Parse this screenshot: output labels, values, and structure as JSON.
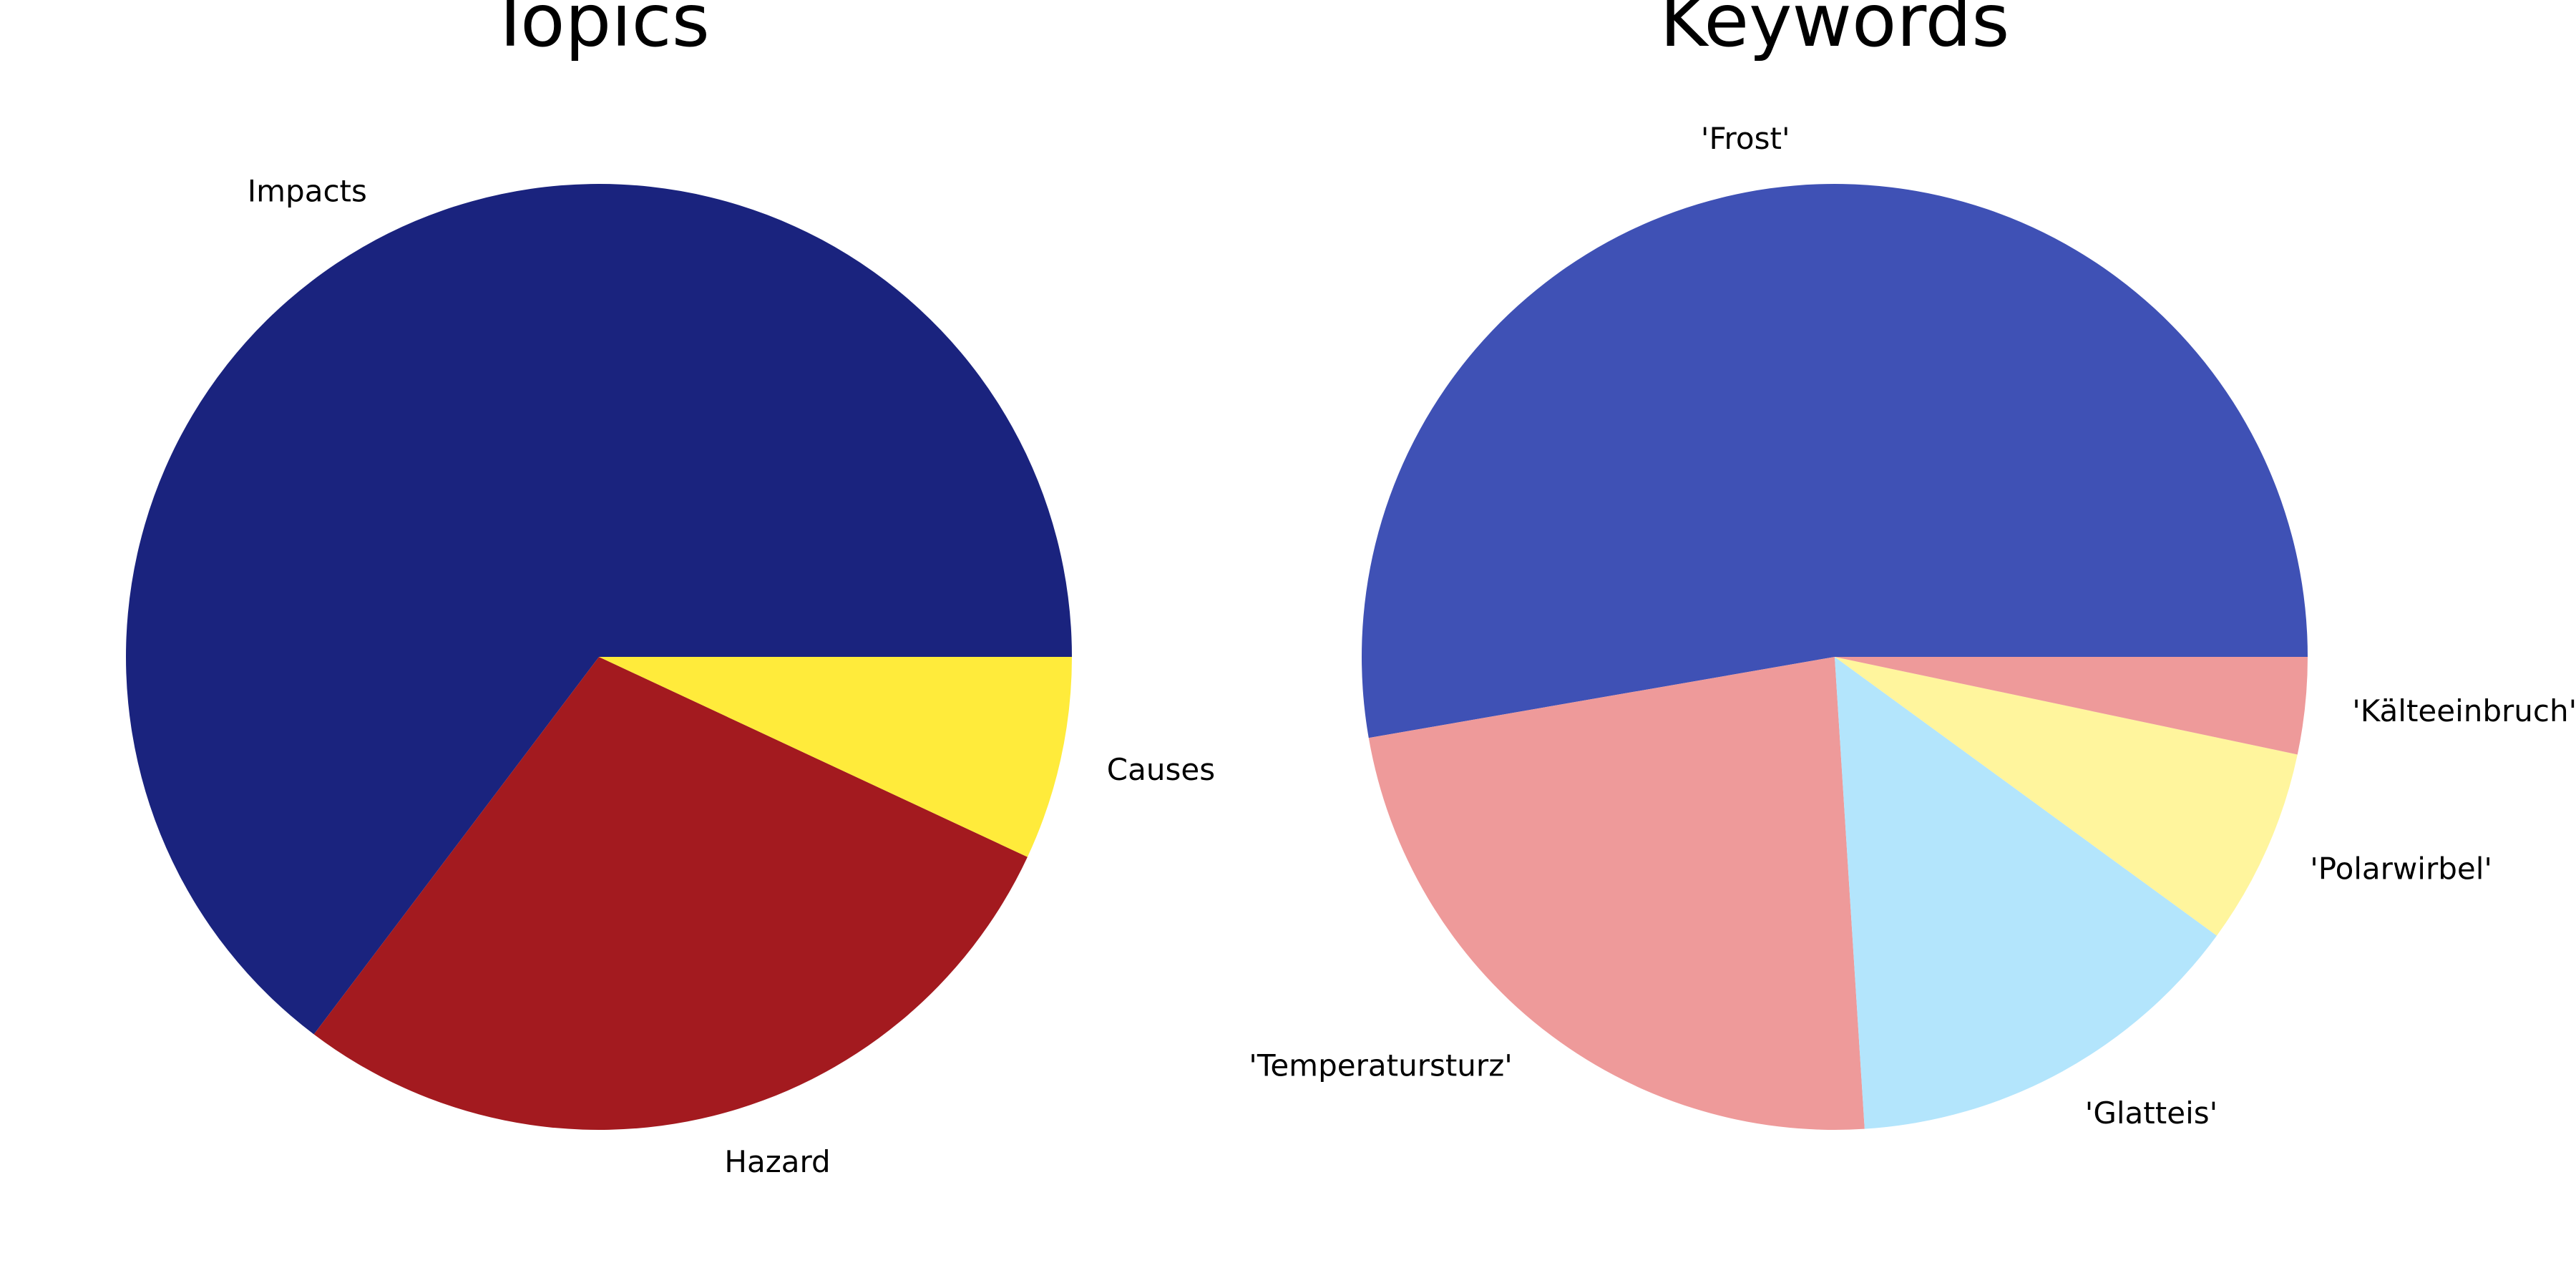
{
  "chart_data": [
    {
      "type": "pie",
      "title": "Topics",
      "start_angle_deg": 0,
      "direction": "counterclockwise",
      "slices": [
        {
          "label": "Impacts",
          "value": 60.5,
          "color": "#1a237e"
        },
        {
          "label": "Hazard",
          "value": 26.5,
          "color": "#a31a1f"
        },
        {
          "label": "Causes",
          "value": 6.5,
          "color": "#ffeb3b"
        }
      ]
    },
    {
      "type": "pie",
      "title": "Keywords",
      "start_angle_deg": 0,
      "direction": "counterclockwise",
      "slices": [
        {
          "label": "'Frost'",
          "value": 51.0,
          "color": "#3f51b5"
        },
        {
          "label": "'Temperatursturz'",
          "value": 22.5,
          "color": "#ee9a9a"
        },
        {
          "label": "'Glatteis'",
          "value": 13.5,
          "color": "#b3e5fc"
        },
        {
          "label": "'Polarwirbel'",
          "value": 6.5,
          "color": "#fff59d"
        },
        {
          "label": "'Kälteeinbruch'",
          "value": 3.2,
          "color": "#ee9a9a"
        }
      ]
    }
  ]
}
